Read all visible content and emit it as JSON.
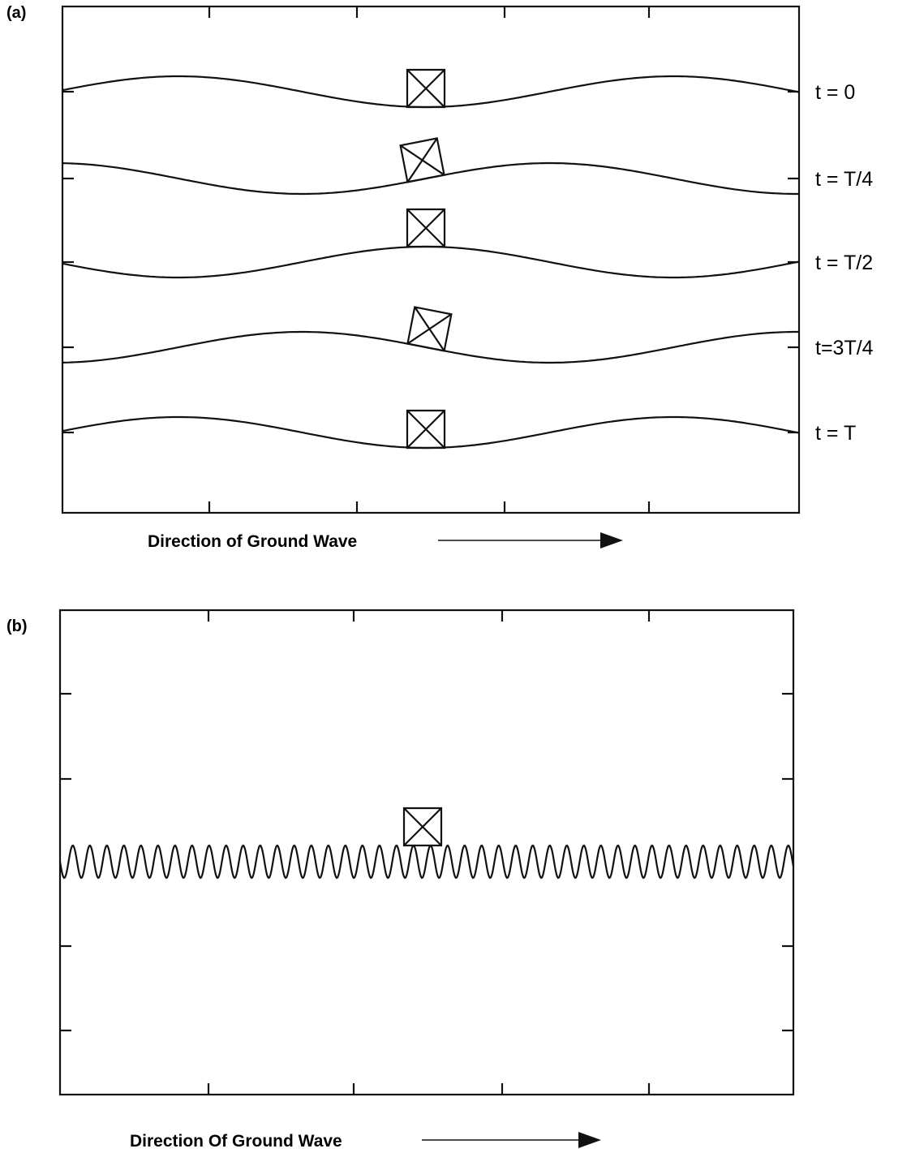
{
  "panels": [
    {
      "label": "(a)",
      "states": [
        {
          "time": "t = 0"
        },
        {
          "time": "t = T/4"
        },
        {
          "time": "t = T/2"
        },
        {
          "time": "t=3T/4"
        },
        {
          "time": "t = T"
        }
      ],
      "caption": "Direction of Ground Wave"
    },
    {
      "label": "(b)",
      "caption": "Direction Of Ground Wave"
    }
  ]
}
